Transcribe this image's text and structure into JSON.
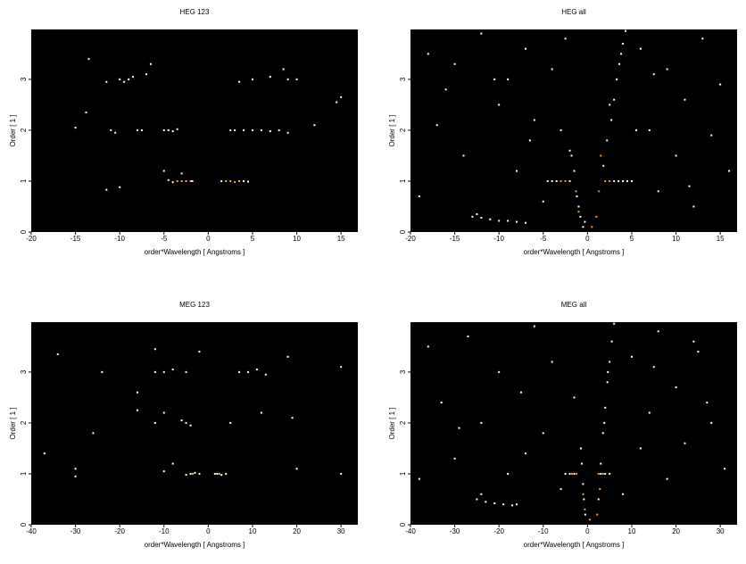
{
  "chart_data": [
    {
      "type": "scatter",
      "title": "HEG 123",
      "x_label": "order*Wavelength [ Angstroms ]",
      "y_label": "Order [ 1 ]",
      "xlim": [
        -20,
        16.9
      ],
      "ylim": [
        0,
        3.98
      ],
      "xticks": [
        -20,
        -15,
        -10,
        -5,
        0,
        5,
        10,
        15
      ],
      "yticks": [
        0,
        1,
        2,
        3
      ],
      "series": [
        {
          "color": "#ffffff",
          "x": [
            -4,
            -4.5,
            -1.8,
            1.5,
            4,
            4.5,
            -11.5,
            -10,
            -5,
            -3,
            -11,
            -10.5,
            -8,
            -7.5,
            -5,
            -4.5,
            -4,
            -3.5,
            2.5,
            3,
            4,
            5,
            6,
            7,
            8,
            9,
            -15,
            12,
            -11.5,
            -10,
            -9.5,
            -9,
            -8.5,
            -7,
            -6.5,
            3.5,
            5,
            7,
            8.5,
            9,
            10,
            14.5,
            15,
            -13.5,
            -13.8
          ],
          "y": [
            0.98,
            1.02,
            1,
            1,
            1,
            0.99,
            0.83,
            0.88,
            1.2,
            1.15,
            2,
            1.95,
            2,
            2,
            2,
            2,
            1.98,
            2.02,
            2,
            2,
            2,
            2,
            2,
            1.98,
            2,
            1.95,
            2.05,
            2.1,
            2.95,
            3,
            2.95,
            3,
            3.05,
            3.1,
            3.3,
            2.95,
            3,
            3.05,
            3.2,
            3,
            3,
            2.55,
            2.65,
            3.4,
            2.35
          ]
        },
        {
          "color": "#ffb040",
          "x": [
            -3.5,
            -3,
            -2.5,
            -2,
            2,
            2.5,
            3,
            3.5
          ],
          "y": [
            1,
            1,
            1,
            1,
            1,
            1,
            0.98,
            1
          ]
        }
      ]
    },
    {
      "type": "scatter",
      "title": "HEG all",
      "x_label": "order*Wavelength [ Angstroms ]",
      "y_label": "Order [ 1 ]",
      "xlim": [
        -20,
        16.9
      ],
      "ylim": [
        0,
        3.98
      ],
      "xticks": [
        -20,
        -15,
        -10,
        -5,
        0,
        5,
        10,
        15
      ],
      "yticks": [
        0,
        1,
        2,
        3
      ],
      "series": [
        {
          "color": "#ffffff",
          "x": [
            -0.5,
            -0.8,
            -1,
            -1.2,
            -1.5,
            -1.8,
            -2,
            -0.3,
            1.8,
            2.2,
            2.7,
            3,
            3.3,
            3.6,
            4,
            4.3,
            2.5,
            3.8,
            -4.5,
            -4,
            -3.5,
            -2,
            3,
            3.5,
            4,
            4.5,
            5,
            -13,
            -12,
            -11,
            -10,
            -9,
            -8,
            -7,
            -12.5,
            -18,
            -16,
            -14,
            -12,
            -10,
            -9,
            -8,
            -7,
            -6,
            -5,
            -4,
            -3,
            -2.5,
            6,
            7,
            8,
            9,
            10,
            11,
            12,
            13,
            14,
            15,
            16,
            -19,
            -15,
            5.5,
            -6.5,
            -10.5,
            7.5,
            11.5,
            -17
          ],
          "y": [
            0.1,
            0.3,
            0.5,
            0.7,
            1.2,
            1.5,
            1.6,
            0.2,
            1.3,
            1.8,
            2.2,
            2.6,
            3,
            3.3,
            3.7,
            3.95,
            2.5,
            3.5,
            1,
            1,
            1,
            1,
            1,
            1,
            1,
            1,
            1,
            0.3,
            0.28,
            0.25,
            0.22,
            0.22,
            0.2,
            0.18,
            0.35,
            3.5,
            2.8,
            1.5,
            3.9,
            2.5,
            3,
            1.2,
            3.6,
            2.2,
            0.6,
            3.2,
            2,
            3.8,
            3.6,
            2,
            0.8,
            3.2,
            1.5,
            2.6,
            0.5,
            3.8,
            1.9,
            2.9,
            1.2,
            0.7,
            3.3,
            2,
            1.8,
            3,
            3.1,
            0.9,
            2.1
          ]
        },
        {
          "color": "#ff9933",
          "x": [
            -1,
            -1.3,
            1,
            1.3,
            -2.5,
            -3,
            2,
            2.5,
            1.5,
            0.5
          ],
          "y": [
            0.4,
            0.8,
            0.3,
            0.8,
            1,
            1,
            1,
            1,
            1.5,
            0.1
          ]
        }
      ]
    },
    {
      "type": "scatter",
      "title": "MEG 123",
      "x_label": "order*Wavelength [ Angstroms ]",
      "y_label": "Order [ 1 ]",
      "xlim": [
        -40,
        33.8
      ],
      "ylim": [
        0,
        3.98
      ],
      "xticks": [
        -40,
        -30,
        -20,
        -10,
        0,
        10,
        20,
        30
      ],
      "yticks": [
        0,
        1,
        2,
        3
      ],
      "series": [
        {
          "color": "#ffffff",
          "x": [
            -4,
            -3,
            -2,
            -5,
            2,
            3,
            4,
            1.5,
            -30,
            -30,
            -10,
            -8,
            20,
            30,
            -37,
            -10,
            -6,
            -5,
            -4,
            -12,
            -16,
            -26,
            5,
            12,
            19,
            -24,
            -16,
            -12,
            -10,
            -8,
            -5,
            7,
            9,
            11,
            13,
            -2,
            -12,
            18,
            -34,
            30
          ],
          "y": [
            1,
            1.02,
            1,
            0.98,
            1,
            0.98,
            1,
            1,
            1.1,
            0.95,
            1.05,
            1.2,
            1.1,
            1,
            1.4,
            2.2,
            2.05,
            2,
            1.95,
            2,
            2.25,
            1.8,
            2,
            2.2,
            2.1,
            3,
            2.6,
            3,
            3,
            3.05,
            3,
            3,
            3,
            3.05,
            2.95,
            3.4,
            3.45,
            3.3,
            3.35,
            3.1
          ]
        },
        {
          "color": "#ffb040",
          "x": [
            -3.5,
            2.5
          ],
          "y": [
            1,
            1
          ]
        }
      ]
    },
    {
      "type": "scatter",
      "title": "MEG all",
      "x_label": "order*Wavelength [ Angstroms ]",
      "y_label": "Order [ 1 ]",
      "xlim": [
        -40,
        33.8
      ],
      "ylim": [
        0,
        3.98
      ],
      "xticks": [
        -40,
        -30,
        -20,
        -10,
        0,
        10,
        20,
        30
      ],
      "yticks": [
        0,
        1,
        2,
        3
      ],
      "series": [
        {
          "color": "#ffffff",
          "x": [
            -0.5,
            -0.8,
            -1,
            -1.3,
            -1.5,
            2.5,
            3,
            3.5,
            4,
            4.5,
            5,
            5.5,
            6,
            3.8,
            4.6,
            -5,
            -4,
            -3,
            3,
            4,
            5,
            -25,
            -23,
            -21,
            -19,
            -17,
            -16,
            -24,
            -36,
            -33,
            -30,
            -27,
            -24,
            -20,
            -18,
            -15,
            -12,
            -10,
            -8,
            -6,
            -3,
            10,
            12,
            14,
            16,
            18,
            20,
            22,
            25,
            28,
            31,
            8,
            -29,
            -14,
            15,
            24,
            -38,
            27
          ],
          "y": [
            0.2,
            0.5,
            0.8,
            1.2,
            1.5,
            0.5,
            1.2,
            1.8,
            2.3,
            2.8,
            3.2,
            3.6,
            3.95,
            2,
            3,
            1,
            1,
            1,
            1,
            1,
            1,
            0.5,
            0.45,
            0.42,
            0.4,
            0.38,
            0.4,
            0.6,
            3.5,
            2.4,
            1.3,
            3.7,
            2,
            3,
            1,
            2.6,
            3.9,
            1.8,
            3.2,
            0.7,
            2.5,
            3.3,
            1.5,
            2.2,
            3.8,
            0.9,
            2.7,
            1.6,
            3.4,
            2,
            1.1,
            0.6,
            1.9,
            1.4,
            3.1,
            3.6,
            0.9,
            2.4
          ]
        },
        {
          "color": "#ff9933",
          "x": [
            -0.6,
            -1,
            2.2,
            2.8,
            -3.5,
            -2.5,
            2.5,
            3.5,
            0.5
          ],
          "y": [
            0.3,
            0.6,
            0.2,
            0.7,
            1,
            1,
            1,
            1,
            0.1
          ]
        }
      ]
    }
  ]
}
